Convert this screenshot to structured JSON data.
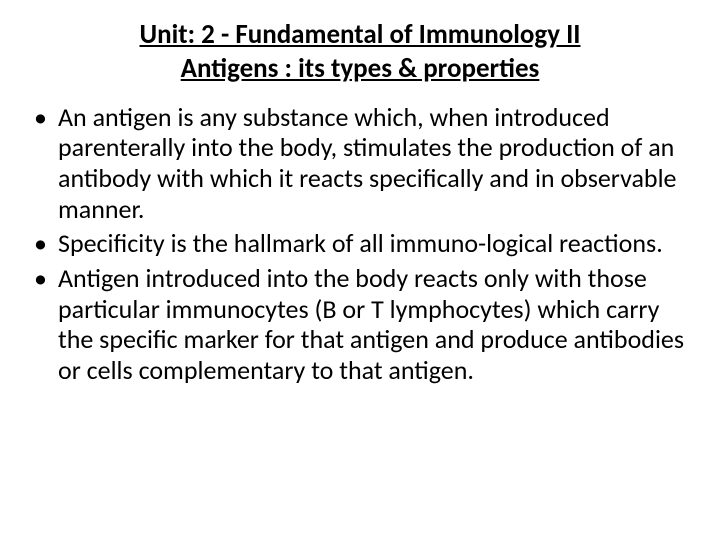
{
  "title": {
    "line1": "Unit: 2  -  Fundamental of Immunology  II",
    "line2": "Antigens : its types & properties",
    "font_size": 27,
    "font_weight": 700,
    "underline": true,
    "color": "#000000"
  },
  "bullets": {
    "font_size": 26,
    "color": "#000000",
    "items": [
      {
        "text": " An antigen is any substance which, when introduced parenterally into the body, stimulates the production of an antibody with which it reacts specifically and in observable manner."
      },
      {
        "text": " Specificity is the hallmark of all immuno-logical reactions."
      },
      {
        "text": " Antigen introduced into the body reacts only with those particular immunocytes (B or T lymphocytes) which carry the specific marker for that antigen and  produce antibodies or cells complementary to that antigen."
      }
    ]
  },
  "background_color": "#ffffff"
}
